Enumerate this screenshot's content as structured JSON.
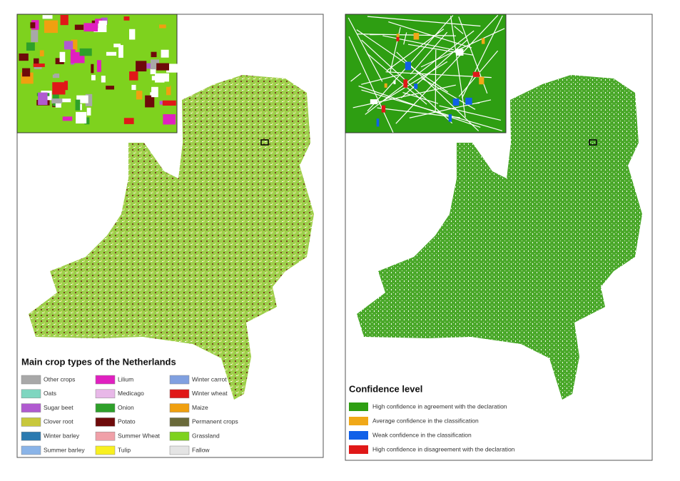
{
  "left_panel": {
    "legend": {
      "title": "Main crop types of the Netherlands",
      "items": [
        {
          "name": "Other crops",
          "color": "#a8a8a8"
        },
        {
          "name": "Oats",
          "color": "#7fd6c0"
        },
        {
          "name": "Sugar beet",
          "color": "#b05ad0"
        },
        {
          "name": "Clover root",
          "color": "#c8c83c"
        },
        {
          "name": "Winter barley",
          "color": "#2a7ab0"
        },
        {
          "name": "Summer barley",
          "color": "#8ab4e8"
        },
        {
          "name": "Lilium",
          "color": "#e020c0"
        },
        {
          "name": "Medicago",
          "color": "#e8b8e8"
        },
        {
          "name": "Onion",
          "color": "#2ea02a"
        },
        {
          "name": "Potato",
          "color": "#6e0a0a"
        },
        {
          "name": "Summer Wheat",
          "color": "#f0a0a8"
        },
        {
          "name": "Tulip",
          "color": "#f8f020"
        },
        {
          "name": "Winter carrot",
          "color": "#80a0e0"
        },
        {
          "name": "Winter wheat",
          "color": "#e01818"
        },
        {
          "name": "Maize",
          "color": "#f0a010"
        },
        {
          "name": "Permanent crops",
          "color": "#6a6a3a"
        },
        {
          "name": "Grassland",
          "color": "#7ed21e"
        },
        {
          "name": "Fallow",
          "color": "#e4e4e4"
        }
      ]
    }
  },
  "right_panel": {
    "legend": {
      "title": "Confidence level",
      "items": [
        {
          "name": "High confidence in agreement with the declaration",
          "color": "#2e9e12"
        },
        {
          "name": "Average confidence in the classification",
          "color": "#f0a818"
        },
        {
          "name": "Weak confidence in the classification",
          "color": "#1060e8"
        },
        {
          "name": "High confidence in disagreement with the declaration",
          "color": "#e01818"
        }
      ]
    }
  }
}
